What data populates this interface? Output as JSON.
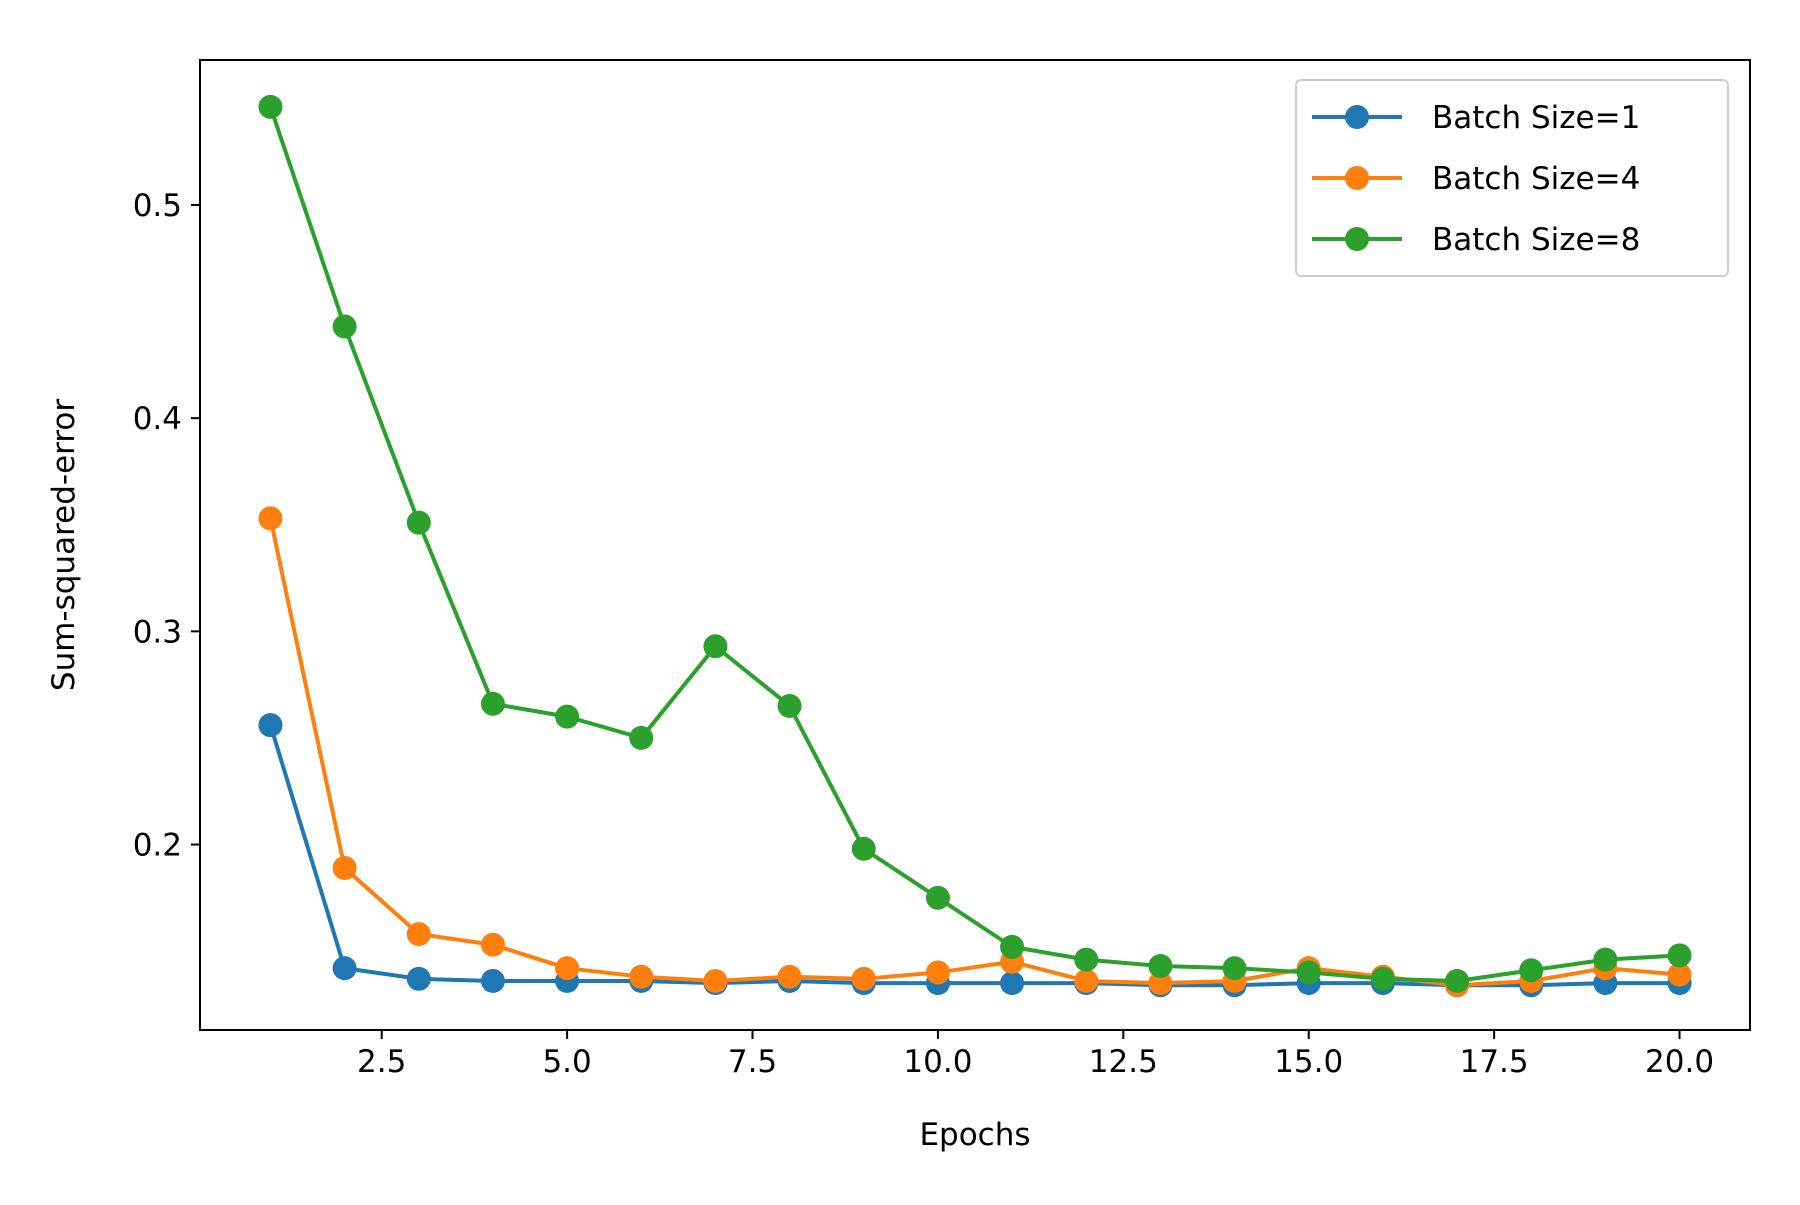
{
  "chart_data": {
    "type": "line",
    "title": "",
    "xlabel": "Epochs",
    "ylabel": "Sum-squared-error",
    "xlim": [
      0.05,
      20.95
    ],
    "ylim": [
      0.113,
      0.568
    ],
    "xticks": [
      2.5,
      5.0,
      7.5,
      10.0,
      12.5,
      15.0,
      17.5,
      20.0
    ],
    "xtick_labels": [
      "2.5",
      "5.0",
      "7.5",
      "10.0",
      "12.5",
      "15.0",
      "17.5",
      "20.0"
    ],
    "yticks": [
      0.2,
      0.3,
      0.4,
      0.5
    ],
    "ytick_labels": [
      "0.2",
      "0.3",
      "0.4",
      "0.5"
    ],
    "grid": false,
    "legend_position": "top-right",
    "x": [
      1,
      2,
      3,
      4,
      5,
      6,
      7,
      8,
      9,
      10,
      11,
      12,
      13,
      14,
      15,
      16,
      17,
      18,
      19,
      20
    ],
    "series": [
      {
        "name": "Batch Size=1",
        "color": "#1f77b4",
        "values": [
          0.256,
          0.142,
          0.137,
          0.136,
          0.136,
          0.136,
          0.135,
          0.136,
          0.135,
          0.135,
          0.135,
          0.135,
          0.134,
          0.134,
          0.135,
          0.135,
          0.134,
          0.134,
          0.135,
          0.135
        ]
      },
      {
        "name": "Batch Size=4",
        "color": "#ff7f0e",
        "values": [
          0.353,
          0.189,
          0.158,
          0.153,
          0.142,
          0.138,
          0.136,
          0.138,
          0.137,
          0.14,
          0.145,
          0.136,
          0.135,
          0.136,
          0.142,
          0.138,
          0.134,
          0.136,
          0.142,
          0.139
        ]
      },
      {
        "name": "Batch Size=8",
        "color": "#2ca02c",
        "values": [
          0.546,
          0.443,
          0.351,
          0.266,
          0.26,
          0.25,
          0.293,
          0.265,
          0.198,
          0.175,
          0.152,
          0.146,
          0.143,
          0.142,
          0.14,
          0.137,
          0.136,
          0.141,
          0.146,
          0.148
        ]
      }
    ]
  }
}
